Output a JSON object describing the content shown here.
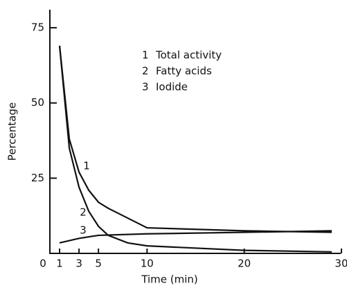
{
  "chart_data": {
    "type": "line",
    "x_label": "Time (min)",
    "y_label": "Percentage",
    "xlim": [
      0,
      30.5
    ],
    "ylim": [
      0,
      81
    ],
    "xticks": [
      0,
      1,
      3,
      5,
      10,
      20,
      30
    ],
    "yticks": [
      25,
      50,
      75
    ],
    "series": [
      {
        "name": "Total activity",
        "label": "1",
        "color": "#111111",
        "x": [
          1,
          2,
          3,
          4,
          5,
          6,
          10,
          20,
          29
        ],
        "values": [
          69,
          38,
          27,
          21,
          17,
          15,
          8.5,
          7.5,
          7
        ]
      },
      {
        "name": "Fatty acids",
        "label": "2",
        "color": "#111111",
        "x": [
          1,
          2,
          3,
          4,
          5,
          6,
          8,
          10,
          20,
          29
        ],
        "values": [
          69,
          35,
          22,
          14,
          9,
          6,
          3.5,
          2.5,
          1,
          0.5
        ]
      },
      {
        "name": "Iodide",
        "label": "3",
        "color": "#111111",
        "x": [
          1,
          3,
          5,
          10,
          20,
          29
        ],
        "values": [
          3.5,
          5,
          6,
          6.5,
          7,
          7.5
        ]
      }
    ]
  }
}
